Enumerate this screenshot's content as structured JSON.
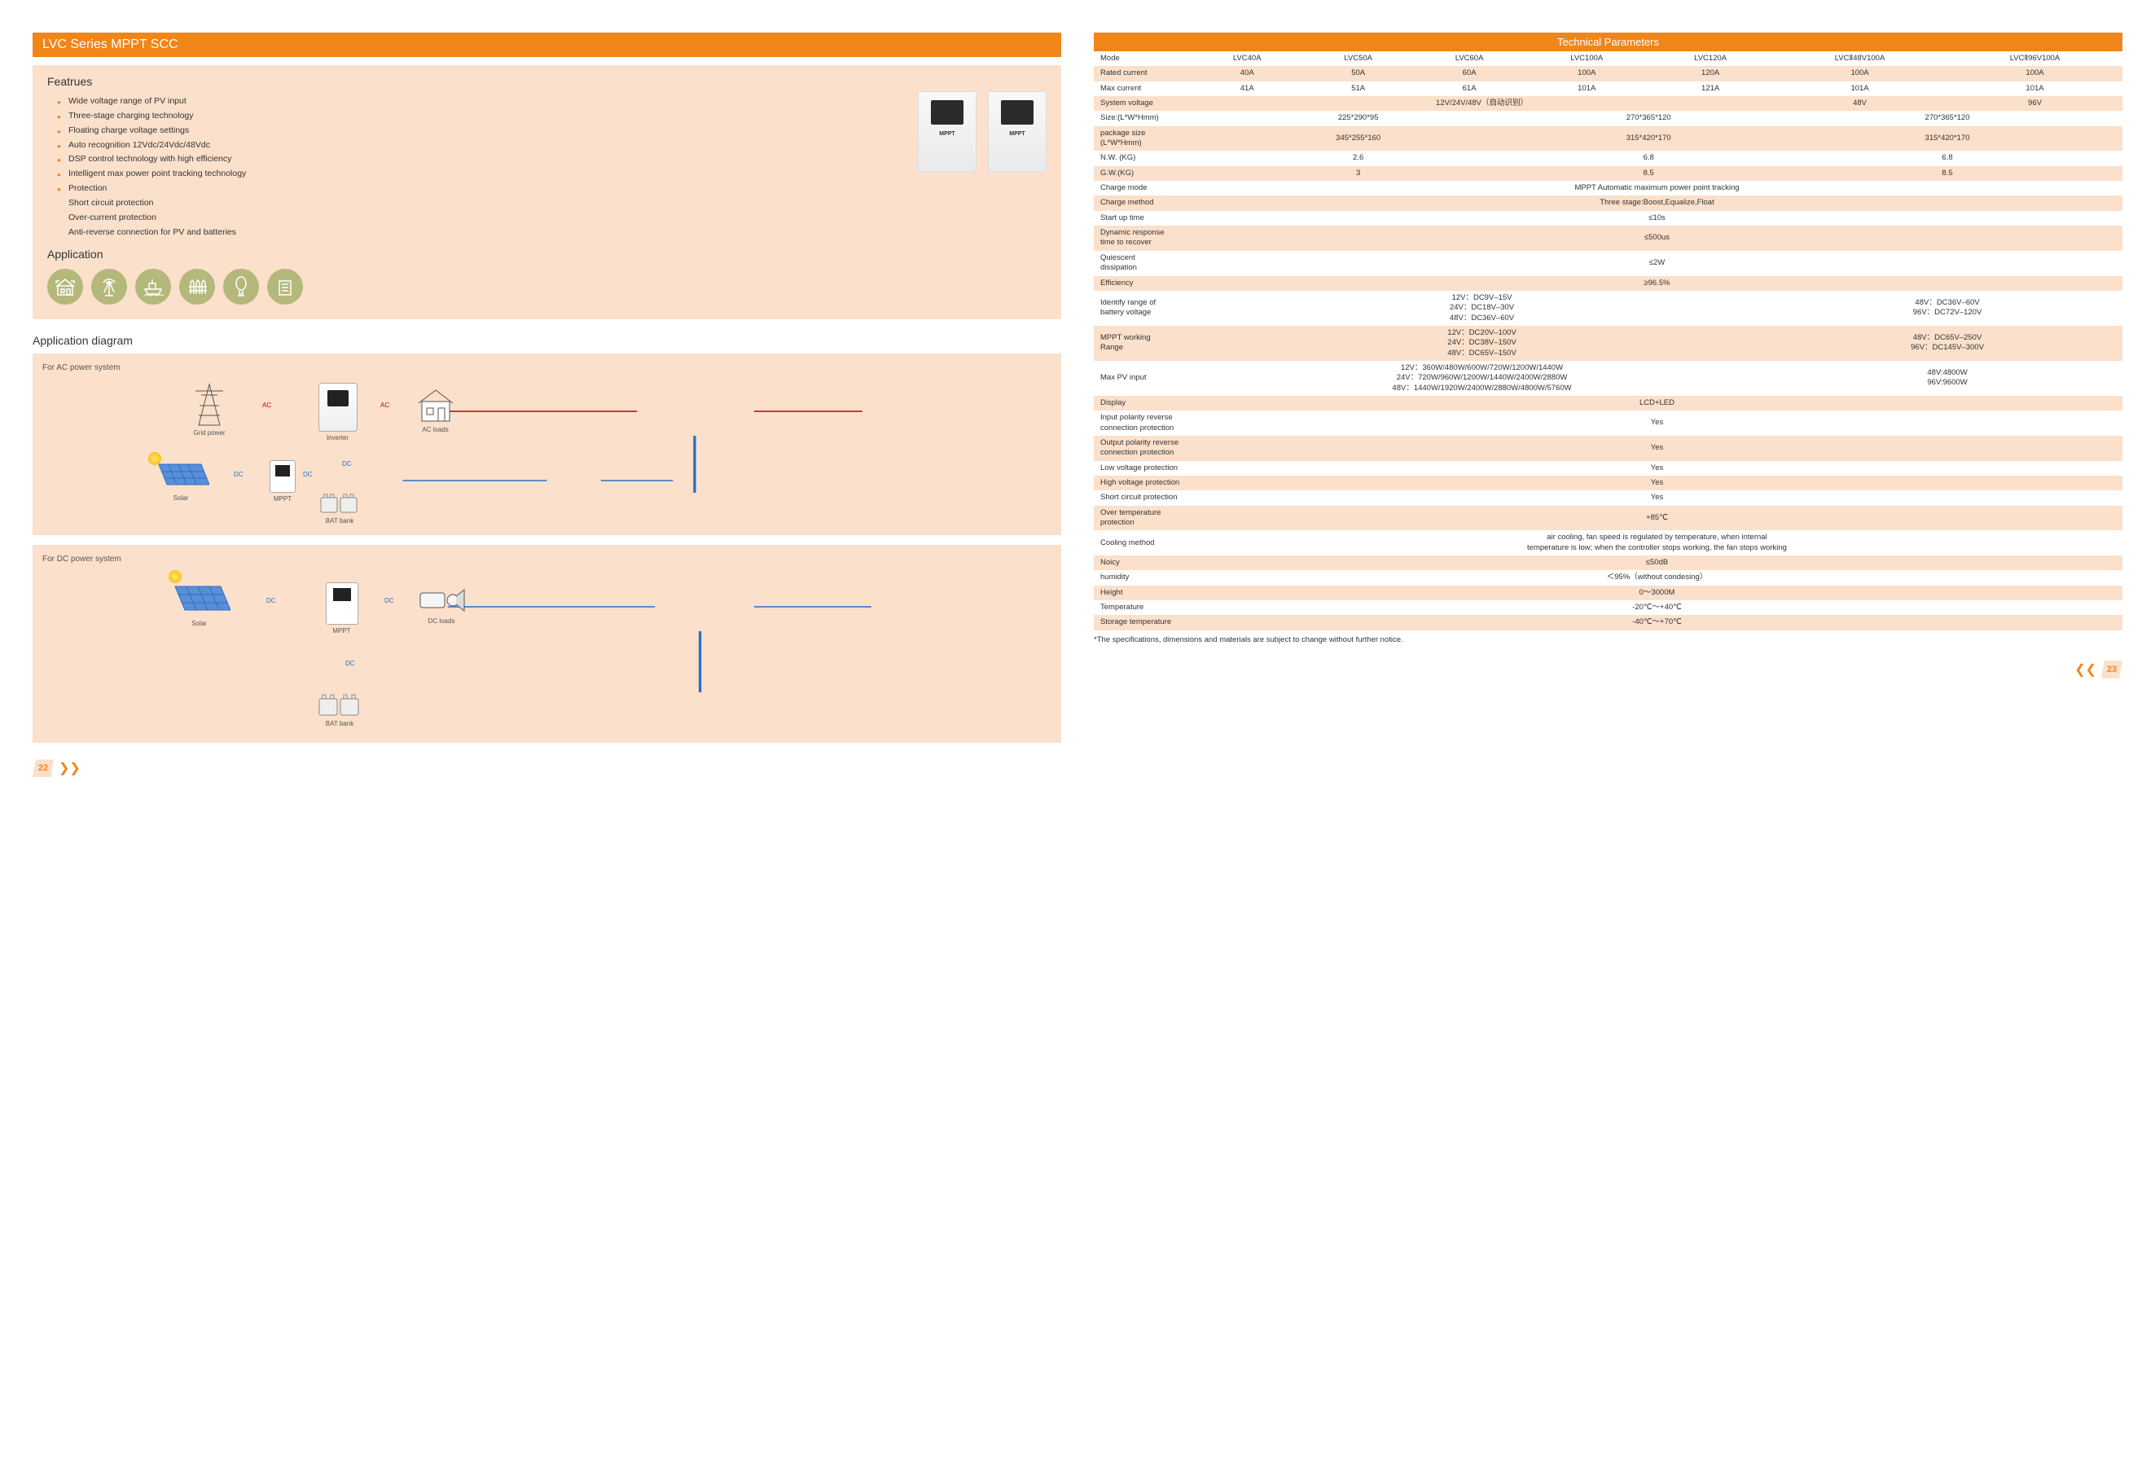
{
  "colors": {
    "brand": "#f08519",
    "panel": "#fbe0cb",
    "iconFill": "#b4b87a",
    "acLine": "#c00000",
    "dcLine": "#2a6fc9"
  },
  "left": {
    "title": "LVC Series MPPT SCC",
    "featuresHeading": "Featrues",
    "features": [
      "Wide voltage range of PV input",
      "Three-stage charging technology",
      "Floating charge voltage settings",
      "Auto recognition 12Vdc/24Vdc/48Vdc",
      "DSP  control technology with high efficiency",
      "Intelligent  max  power  point tracking technology",
      "Protection"
    ],
    "featuresSub": [
      "Short circuit protection",
      "Over-current protection",
      "Anti-reverse connection for PV and batteries"
    ],
    "productLabel": "MPPT",
    "applicationHeading": "Application",
    "appIcons": [
      "home-icon",
      "antenna-icon",
      "boat-icon",
      "fence-icon",
      "lamp-icon",
      "building-icon"
    ],
    "diagramHeading": "Application diagram",
    "diagramA": {
      "title": "For  AC  power  system",
      "labels": {
        "grid": "Grid  power",
        "inverter": "Inverter",
        "acloads": "AC  loads",
        "solar": "Solar",
        "mppt": "MPPT",
        "bat": "BAT  bank"
      },
      "wireLabels": {
        "ac": "AC",
        "dc": "DC"
      }
    },
    "diagramB": {
      "title": "For  DC  power  system",
      "labels": {
        "solar": "Solar",
        "mppt": "MPPT",
        "dcloads": "DC  loads",
        "bat": "BAT bank"
      }
    },
    "pageNum": "22"
  },
  "right": {
    "title": "Technical Parameters",
    "columns": [
      "LVC40A",
      "LVC50A",
      "LVC60A",
      "LVC100A",
      "LVC120A",
      "LVCⅡ48V100A",
      "LVCⅡ96V100A"
    ],
    "rows": [
      {
        "lab": "Mode",
        "cells": [
          "LVC40A",
          "LVC50A",
          "LVC60A",
          "LVC100A",
          "LVC120A",
          "LVCⅡ48V100A",
          "LVCⅡ96V100A"
        ],
        "band": "w"
      },
      {
        "lab": "Rated current",
        "cells": [
          "40A",
          "50A",
          "60A",
          "100A",
          "120A",
          "100A",
          "100A"
        ],
        "band": "h"
      },
      {
        "lab": "Max current",
        "cells": [
          "41A",
          "51A",
          "61A",
          "101A",
          "121A",
          "101A",
          "101A"
        ],
        "band": "w"
      },
      {
        "lab": "System voltage",
        "cells": [
          {
            "span": 5,
            "v": "12V/24V/48V（自动识别）"
          },
          "48V",
          "96V"
        ],
        "band": "h"
      },
      {
        "lab": "Size:(L*W*Hmm)",
        "cells": [
          {
            "span": 3,
            "v": "225*290*95"
          },
          {
            "span": 2,
            "v": "270*365*120"
          },
          {
            "span": 2,
            "v": "270*365*120"
          }
        ],
        "band": "w"
      },
      {
        "lab": "package size\n(L*W*Hmm)",
        "cells": [
          {
            "span": 3,
            "v": "345*255*160"
          },
          {
            "span": 2,
            "v": "315*420*170"
          },
          {
            "span": 2,
            "v": "315*420*170"
          }
        ],
        "band": "h"
      },
      {
        "lab": "N.W. (KG)",
        "cells": [
          {
            "span": 3,
            "v": "2.6"
          },
          {
            "span": 2,
            "v": "6.8"
          },
          {
            "span": 2,
            "v": "6.8"
          }
        ],
        "band": "w"
      },
      {
        "lab": "G.W.(KG)",
        "cells": [
          {
            "span": 3,
            "v": "3"
          },
          {
            "span": 2,
            "v": "8.5"
          },
          {
            "span": 2,
            "v": "8.5"
          }
        ],
        "band": "h"
      },
      {
        "lab": "Charge mode",
        "cells": [
          {
            "span": 7,
            "v": "MPPT Automatic maximum power point tracking"
          }
        ],
        "band": "w"
      },
      {
        "lab": "Charge method",
        "cells": [
          {
            "span": 7,
            "v": "Three stage:Boost,Equalize,Float"
          }
        ],
        "band": "h"
      },
      {
        "lab": "Start up time",
        "cells": [
          {
            "span": 7,
            "v": "≤10s"
          }
        ],
        "band": "w"
      },
      {
        "lab": "Dynamic response\ntime to recover",
        "cells": [
          {
            "span": 7,
            "v": "≤500us"
          }
        ],
        "band": "h"
      },
      {
        "lab": "Quiescent\ndissipation",
        "cells": [
          {
            "span": 7,
            "v": "≤2W"
          }
        ],
        "band": "w"
      },
      {
        "lab": "Efficiency",
        "cells": [
          {
            "span": 7,
            "v": "≥96.5%"
          }
        ],
        "band": "h"
      },
      {
        "lab": "Identify range of\nbattery voltage",
        "cells": [
          {
            "span": 5,
            "v": "12V：DC9V–15V\n24V：DC18V–30V\n48V：DC36V–60V"
          },
          {
            "span": 2,
            "v": "48V：DC36V–60V\n96V：DC72V–120V"
          }
        ],
        "band": "w"
      },
      {
        "lab": "MPPT working\nRange",
        "cells": [
          {
            "span": 5,
            "v": "12V：DC20V–100V\n24V：DC38V–150V\n48V：DC65V–150V"
          },
          {
            "span": 2,
            "v": "48V：DC65V–250V\n96V：DC145V–300V"
          }
        ],
        "band": "h"
      },
      {
        "lab": "Max PV  input",
        "cells": [
          {
            "span": 5,
            "v": "12V：360W/480W/600W/720W/1200W/1440W\n24V：720W/960W/1200W/1440W/2400W/2880W\n48V：1440W/1920W/2400W/2880W/4800W/5760W"
          },
          {
            "span": 2,
            "v": "48V:4800W\n96V:9600W"
          }
        ],
        "band": "w"
      },
      {
        "lab": "Display",
        "cells": [
          {
            "span": 7,
            "v": "LCD+LED"
          }
        ],
        "band": "h"
      },
      {
        "lab": "Input polarity reverse\nconnection protection",
        "cells": [
          {
            "span": 7,
            "v": "Yes"
          }
        ],
        "band": "w"
      },
      {
        "lab": "Output polarity reverse\nconnection protection",
        "cells": [
          {
            "span": 7,
            "v": "Yes"
          }
        ],
        "band": "h"
      },
      {
        "lab": "Low voltage protection",
        "cells": [
          {
            "span": 7,
            "v": "Yes"
          }
        ],
        "band": "w"
      },
      {
        "lab": "High voltage protection",
        "cells": [
          {
            "span": 7,
            "v": "Yes"
          }
        ],
        "band": "h"
      },
      {
        "lab": "Short circuit protection",
        "cells": [
          {
            "span": 7,
            "v": "Yes"
          }
        ],
        "band": "w"
      },
      {
        "lab": "Over temperature\nprotection",
        "cells": [
          {
            "span": 7,
            "v": "+85℃"
          }
        ],
        "band": "h"
      },
      {
        "lab": "Cooling method",
        "cells": [
          {
            "span": 7,
            "v": "air cooling, fan speed is regulated by temperature, when internal\ntemperature is low; when the controller stops working, the fan stops working"
          }
        ],
        "band": "w"
      },
      {
        "lab": "Noicy",
        "cells": [
          {
            "span": 7,
            "v": "≤50dB"
          }
        ],
        "band": "h"
      },
      {
        "lab": "humidity",
        "cells": [
          {
            "span": 7,
            "v": "＜95%（without  condesing）"
          }
        ],
        "band": "w"
      },
      {
        "lab": "Height",
        "cells": [
          {
            "span": 7,
            "v": "0～3000M"
          }
        ],
        "band": "h"
      },
      {
        "lab": "Temperature",
        "cells": [
          {
            "span": 7,
            "v": "-20℃～+40℃"
          }
        ],
        "band": "w"
      },
      {
        "lab": "Storage temperature",
        "cells": [
          {
            "span": 7,
            "v": "-40℃～+70℃"
          }
        ],
        "band": "h"
      }
    ],
    "footnote": "*The specifications, dimensions and materials are subject to change without further notice.",
    "pageNum": "23"
  }
}
